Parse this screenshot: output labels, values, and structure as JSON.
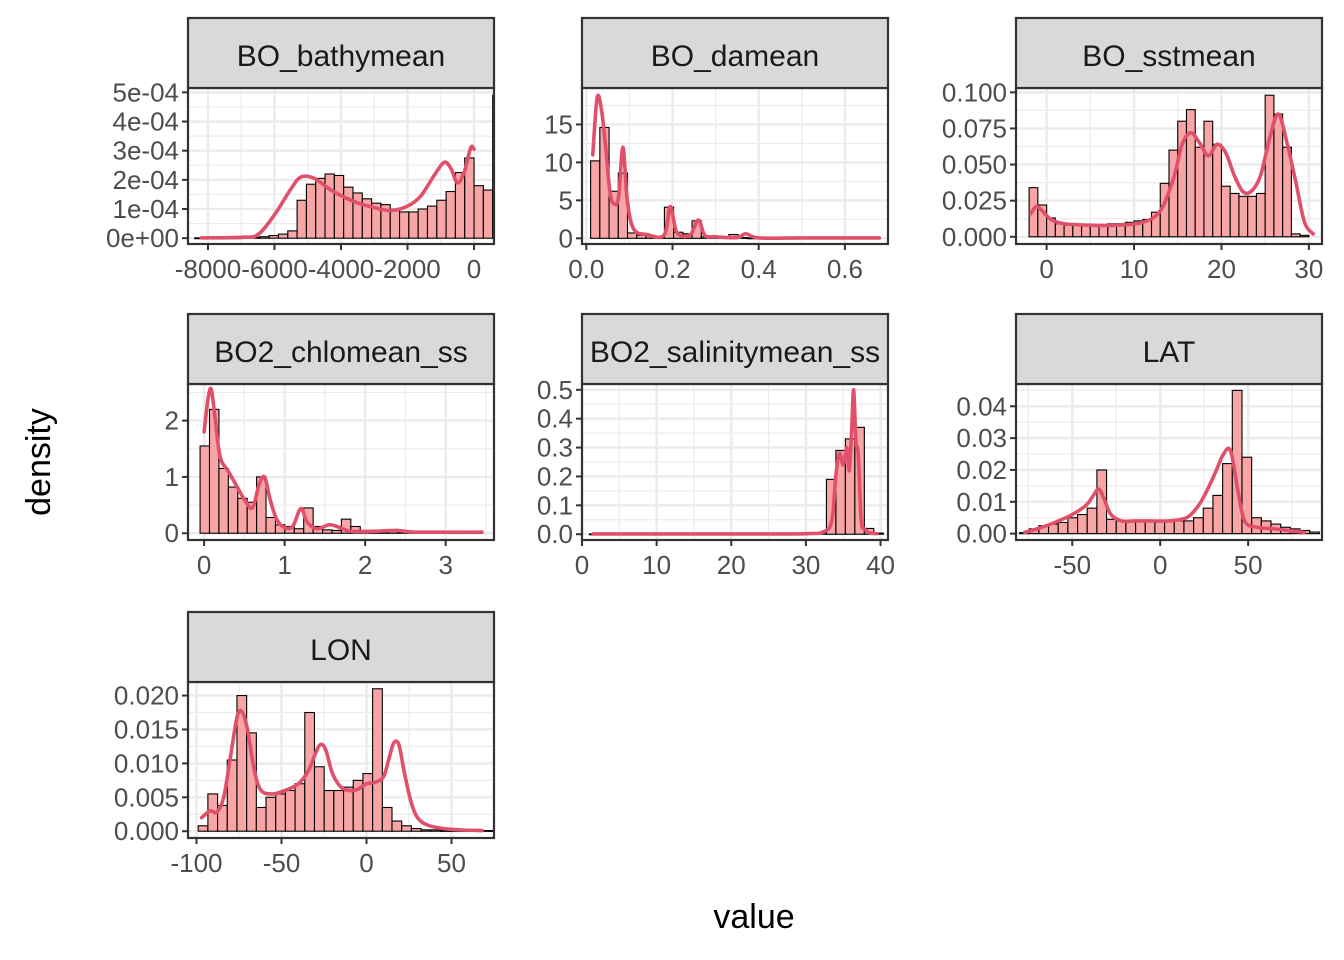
{
  "chart_data": {
    "type": "histogram",
    "layout": "facet_wrap",
    "ncol": 3,
    "xlabel": "value",
    "ylabel": "density",
    "grid": true,
    "colors": {
      "bar_fill": "#F8A5A5",
      "bar_outline": "#000000",
      "density_line": "#E0506A",
      "strip_fill": "#D9D9D9",
      "panel_border": "#333333",
      "grid": "#EBEBEB"
    },
    "panels": [
      {
        "title": "BO_bathymean",
        "xlim": [
          -8600,
          600
        ],
        "ylim": [
          -2e-05,
          0.000515
        ],
        "xticks": [
          -8000,
          -6000,
          -4000,
          -2000,
          0
        ],
        "xtick_labels": [
          "-8000",
          "-6000",
          "-4000",
          "-2000",
          "0"
        ],
        "yticks": [
          0,
          0.0001,
          0.0002,
          0.0003,
          0.0004,
          0.0005
        ],
        "ytick_labels": [
          "0e+00",
          "1e-04",
          "2e-04",
          "3e-04",
          "4e-04",
          "5e-04"
        ],
        "bins": {
          "start": -8400,
          "width": 280,
          "heights": [
            1e-06,
            0,
            1e-06,
            1e-06,
            1e-06,
            2e-06,
            3e-06,
            5e-06,
            9e-06,
            1.4e-05,
            2.5e-05,
            0.00013,
            0.000185,
            0.000205,
            0.00022,
            0.000215,
            0.000175,
            0.000155,
            0.000135,
            0.00012,
            0.000115,
            0.0001,
            9e-05,
            9e-05,
            0.0001,
            0.00011,
            0.00013,
            0.00016,
            0.000225,
            0.000275,
            0.00018,
            0.000165,
            0.00049
          ]
        },
        "density": {
          "x": [
            -8200,
            -7000,
            -6500,
            -6000,
            -5500,
            -5200,
            -4800,
            -4300,
            -3600,
            -3000,
            -2500,
            -2000,
            -1600,
            -1200,
            -900,
            -700,
            -500,
            -300,
            -100,
            0
          ],
          "y": [
            1e-06,
            3e-06,
            1.2e-05,
            8e-05,
            0.00017,
            0.00021,
            0.000205,
            0.000165,
            0.000125,
            0.000105,
            9.5e-05,
            0.00011,
            0.000145,
            0.000215,
            0.00026,
            0.00024,
            0.00019,
            0.000225,
            0.00031,
            0.000305
          ]
        }
      },
      {
        "title": "BO_damean",
        "xlim": [
          -0.01,
          0.7
        ],
        "ylim": [
          -0.75,
          19.8
        ],
        "xticks": [
          0,
          0.2,
          0.4,
          0.6
        ],
        "xtick_labels": [
          "0.0",
          "0.2",
          "0.4",
          "0.6"
        ],
        "yticks": [
          0,
          5,
          10,
          15
        ],
        "ytick_labels": [
          "0",
          "5",
          "10",
          "15"
        ],
        "bins": {
          "start": 0.01,
          "width": 0.0214,
          "heights": [
            10.2,
            14.6,
            6.2,
            8.6,
            0.7,
            0.4,
            0.3,
            0.2,
            4.1,
            0.8,
            0.6,
            2.3,
            0.2,
            0.1,
            0.1,
            0.5,
            0.1,
            0.05,
            0.05,
            0.05,
            0.03,
            0.03,
            0.03,
            0.03,
            0.03,
            0.03,
            0.03,
            0.03,
            0.03,
            0.03,
            0.03
          ]
        },
        "density": {
          "x": [
            0.015,
            0.025,
            0.035,
            0.045,
            0.055,
            0.065,
            0.075,
            0.085,
            0.095,
            0.11,
            0.14,
            0.18,
            0.195,
            0.21,
            0.24,
            0.26,
            0.275,
            0.3,
            0.35,
            0.37,
            0.4,
            0.5,
            0.6,
            0.68
          ],
          "y": [
            11,
            18.5,
            17,
            12,
            6,
            4.5,
            5.5,
            12,
            5,
            1.2,
            0.5,
            0.4,
            4.2,
            0.8,
            0.4,
            2.4,
            0.4,
            0.2,
            0.1,
            0.6,
            0.05,
            0.05,
            0.05,
            0.05
          ]
        }
      },
      {
        "title": "BO_sstmean",
        "xlim": [
          -3.5,
          31.5
        ],
        "ylim": [
          -0.005,
          0.103
        ],
        "xticks": [
          0,
          10,
          20,
          30
        ],
        "xtick_labels": [
          "0",
          "10",
          "20",
          "30"
        ],
        "yticks": [
          0,
          0.025,
          0.05,
          0.075,
          0.1
        ],
        "ytick_labels": [
          "0.000",
          "0.025",
          "0.050",
          "0.075",
          "0.100"
        ],
        "bins": {
          "start": -2,
          "width": 1.0,
          "heights": [
            0.034,
            0.022,
            0.013,
            0.009,
            0.008,
            0.008,
            0.008,
            0.008,
            0.008,
            0.009,
            0.009,
            0.01,
            0.011,
            0.012,
            0.017,
            0.037,
            0.06,
            0.08,
            0.088,
            0.062,
            0.08,
            0.064,
            0.035,
            0.03,
            0.028,
            0.028,
            0.03,
            0.098,
            0.085,
            0.062,
            0.002,
            0.001
          ]
        },
        "density": {
          "x": [
            -1.8,
            -1.2,
            -0.5,
            0.5,
            2,
            5,
            8,
            11,
            13,
            14.5,
            15.5,
            16.5,
            17.5,
            18.5,
            19.5,
            20.5,
            21.5,
            22.5,
            23.5,
            24.5,
            25.5,
            26.5,
            27.5,
            28.5,
            29.5,
            30.5
          ],
          "y": [
            0.016,
            0.021,
            0.018,
            0.012,
            0.009,
            0.008,
            0.008,
            0.01,
            0.018,
            0.04,
            0.064,
            0.072,
            0.065,
            0.056,
            0.064,
            0.058,
            0.042,
            0.031,
            0.032,
            0.043,
            0.068,
            0.085,
            0.065,
            0.038,
            0.01,
            0.002
          ]
        }
      },
      {
        "title": "BO2_chlomean_ss",
        "xlim": [
          -0.2,
          3.6
        ],
        "ylim": [
          -0.12,
          2.65
        ],
        "xticks": [
          0,
          1,
          2,
          3
        ],
        "xtick_labels": [
          "0",
          "1",
          "2",
          "3"
        ],
        "yticks": [
          0,
          1,
          2
        ],
        "ytick_labels": [
          "0",
          "1",
          "2"
        ],
        "bins": {
          "start": -0.05,
          "width": 0.117,
          "heights": [
            1.55,
            2.2,
            1.15,
            0.82,
            0.62,
            0.55,
            1.0,
            0.28,
            0.15,
            0.12,
            0.08,
            0.45,
            0.12,
            0.06,
            0.05,
            0.25,
            0.12,
            0.05,
            0.03,
            0.02,
            0.06,
            0.02,
            0.02,
            0.02,
            0.02,
            0.02,
            0.02,
            0.02,
            0.02,
            0.02
          ]
        },
        "density": {
          "x": [
            0,
            0.05,
            0.09,
            0.14,
            0.2,
            0.3,
            0.4,
            0.5,
            0.6,
            0.68,
            0.75,
            0.82,
            0.9,
            1.0,
            1.1,
            1.18,
            1.22,
            1.28,
            1.4,
            1.55,
            1.65,
            1.8,
            2.0,
            2.2,
            2.4,
            2.6,
            3.0,
            3.45
          ],
          "y": [
            1.8,
            2.4,
            2.55,
            2.0,
            1.35,
            1.1,
            0.85,
            0.6,
            0.45,
            0.85,
            1.0,
            0.6,
            0.25,
            0.1,
            0.12,
            0.4,
            0.42,
            0.2,
            0.08,
            0.15,
            0.12,
            0.04,
            0.03,
            0.04,
            0.05,
            0.02,
            0.02,
            0.02
          ]
        }
      },
      {
        "title": "BO2_salinitymean_ss",
        "xlim": [
          0,
          41
        ],
        "ylim": [
          -0.02,
          0.52
        ],
        "xticks": [
          0,
          10,
          20,
          30,
          40
        ],
        "xtick_labels": [
          "0",
          "10",
          "20",
          "30",
          "40"
        ],
        "yticks": [
          0,
          0.1,
          0.2,
          0.3,
          0.4,
          0.5
        ],
        "ytick_labels": [
          "0.0",
          "0.1",
          "0.2",
          "0.3",
          "0.4",
          "0.5"
        ],
        "bins": {
          "start": 1.0,
          "width": 1.27,
          "heights": [
            0.001,
            0.001,
            0.001,
            0.001,
            0.001,
            0.001,
            0.001,
            0.001,
            0.001,
            0.001,
            0.001,
            0.001,
            0.001,
            0.001,
            0.001,
            0.001,
            0.001,
            0.001,
            0.001,
            0.001,
            0.001,
            0.001,
            0.001,
            0.002,
            0.005,
            0.19,
            0.29,
            0.33,
            0.37,
            0.02,
            0.004
          ]
        },
        "density": {
          "x": [
            1.5,
            10,
            20,
            30,
            32.5,
            33.5,
            34,
            34.5,
            35,
            35.5,
            35.8,
            36.1,
            36.4,
            36.7,
            37,
            37.4,
            37.8,
            38.5,
            39.5
          ],
          "y": [
            0.001,
            0.001,
            0.001,
            0.002,
            0.01,
            0.05,
            0.2,
            0.28,
            0.24,
            0.3,
            0.22,
            0.34,
            0.5,
            0.32,
            0.28,
            0.05,
            0.02,
            0.005,
            0.002
          ]
        }
      },
      {
        "title": "LAT",
        "xlim": [
          -82,
          92
        ],
        "ylim": [
          -0.002,
          0.047
        ],
        "xticks": [
          -50,
          0,
          50
        ],
        "xtick_labels": [
          "-50",
          "0",
          "50"
        ],
        "yticks": [
          0,
          0.01,
          0.02,
          0.03,
          0.04
        ],
        "ytick_labels": [
          "0.00",
          "0.01",
          "0.02",
          "0.03",
          "0.04"
        ],
        "bins": {
          "start": -80,
          "width": 5.5,
          "heights": [
            0.0003,
            0.0015,
            0.0025,
            0.003,
            0.0035,
            0.005,
            0.006,
            0.008,
            0.02,
            0.0045,
            0.004,
            0.004,
            0.004,
            0.004,
            0.004,
            0.004,
            0.004,
            0.004,
            0.005,
            0.008,
            0.012,
            0.022,
            0.045,
            0.024,
            0.005,
            0.004,
            0.003,
            0.002,
            0.0015,
            0.001,
            0.0005
          ]
        },
        "density": {
          "x": [
            -77,
            -70,
            -60,
            -50,
            -42,
            -38,
            -35,
            -32,
            -28,
            -22,
            -15,
            -5,
            5,
            15,
            22,
            27,
            32,
            36,
            40,
            44,
            48,
            55,
            65,
            75,
            82
          ],
          "y": [
            0.0004,
            0.0015,
            0.0035,
            0.006,
            0.009,
            0.012,
            0.014,
            0.011,
            0.006,
            0.004,
            0.004,
            0.004,
            0.004,
            0.005,
            0.009,
            0.014,
            0.02,
            0.025,
            0.026,
            0.014,
            0.004,
            0.002,
            0.0015,
            0.0008,
            0.0004
          ]
        }
      },
      {
        "title": "LON",
        "xlim": [
          -105,
          75
        ],
        "ylim": [
          -0.001,
          0.022
        ],
        "xticks": [
          -100,
          -50,
          0,
          50
        ],
        "xtick_labels": [
          "-100",
          "-50",
          "0",
          "50"
        ],
        "yticks": [
          0,
          0.005,
          0.01,
          0.015,
          0.02
        ],
        "ytick_labels": [
          "0.000",
          "0.005",
          "0.010",
          "0.015",
          "0.020"
        ],
        "bins": {
          "start": -99,
          "width": 5.7,
          "heights": [
            0.0008,
            0.0055,
            0.0038,
            0.0105,
            0.02,
            0.0145,
            0.0035,
            0.005,
            0.0055,
            0.006,
            0.007,
            0.0175,
            0.0095,
            0.006,
            0.006,
            0.0065,
            0.0075,
            0.0085,
            0.021,
            0.0035,
            0.0015,
            0.0008,
            0.0004,
            0.0002,
            0.0002,
            0.0001,
            0.0001,
            0.0001,
            0.0001,
            0.0001,
            0.0001,
            0.0001
          ]
        },
        "density": {
          "x": [
            -97,
            -92,
            -88,
            -84,
            -80,
            -76,
            -73,
            -70,
            -66,
            -62,
            -55,
            -48,
            -40,
            -34,
            -30,
            -27,
            -24,
            -20,
            -15,
            -10,
            -5,
            0,
            5,
            10,
            13,
            16,
            19,
            22,
            26,
            30,
            36,
            45,
            55,
            68
          ],
          "y": [
            0.002,
            0.003,
            0.0028,
            0.005,
            0.011,
            0.017,
            0.0175,
            0.015,
            0.009,
            0.006,
            0.0055,
            0.006,
            0.007,
            0.009,
            0.0115,
            0.0128,
            0.012,
            0.0085,
            0.0065,
            0.006,
            0.0062,
            0.007,
            0.0072,
            0.008,
            0.0105,
            0.013,
            0.0128,
            0.009,
            0.0045,
            0.002,
            0.0009,
            0.0004,
            0.0002,
            0.0001
          ]
        }
      }
    ]
  }
}
